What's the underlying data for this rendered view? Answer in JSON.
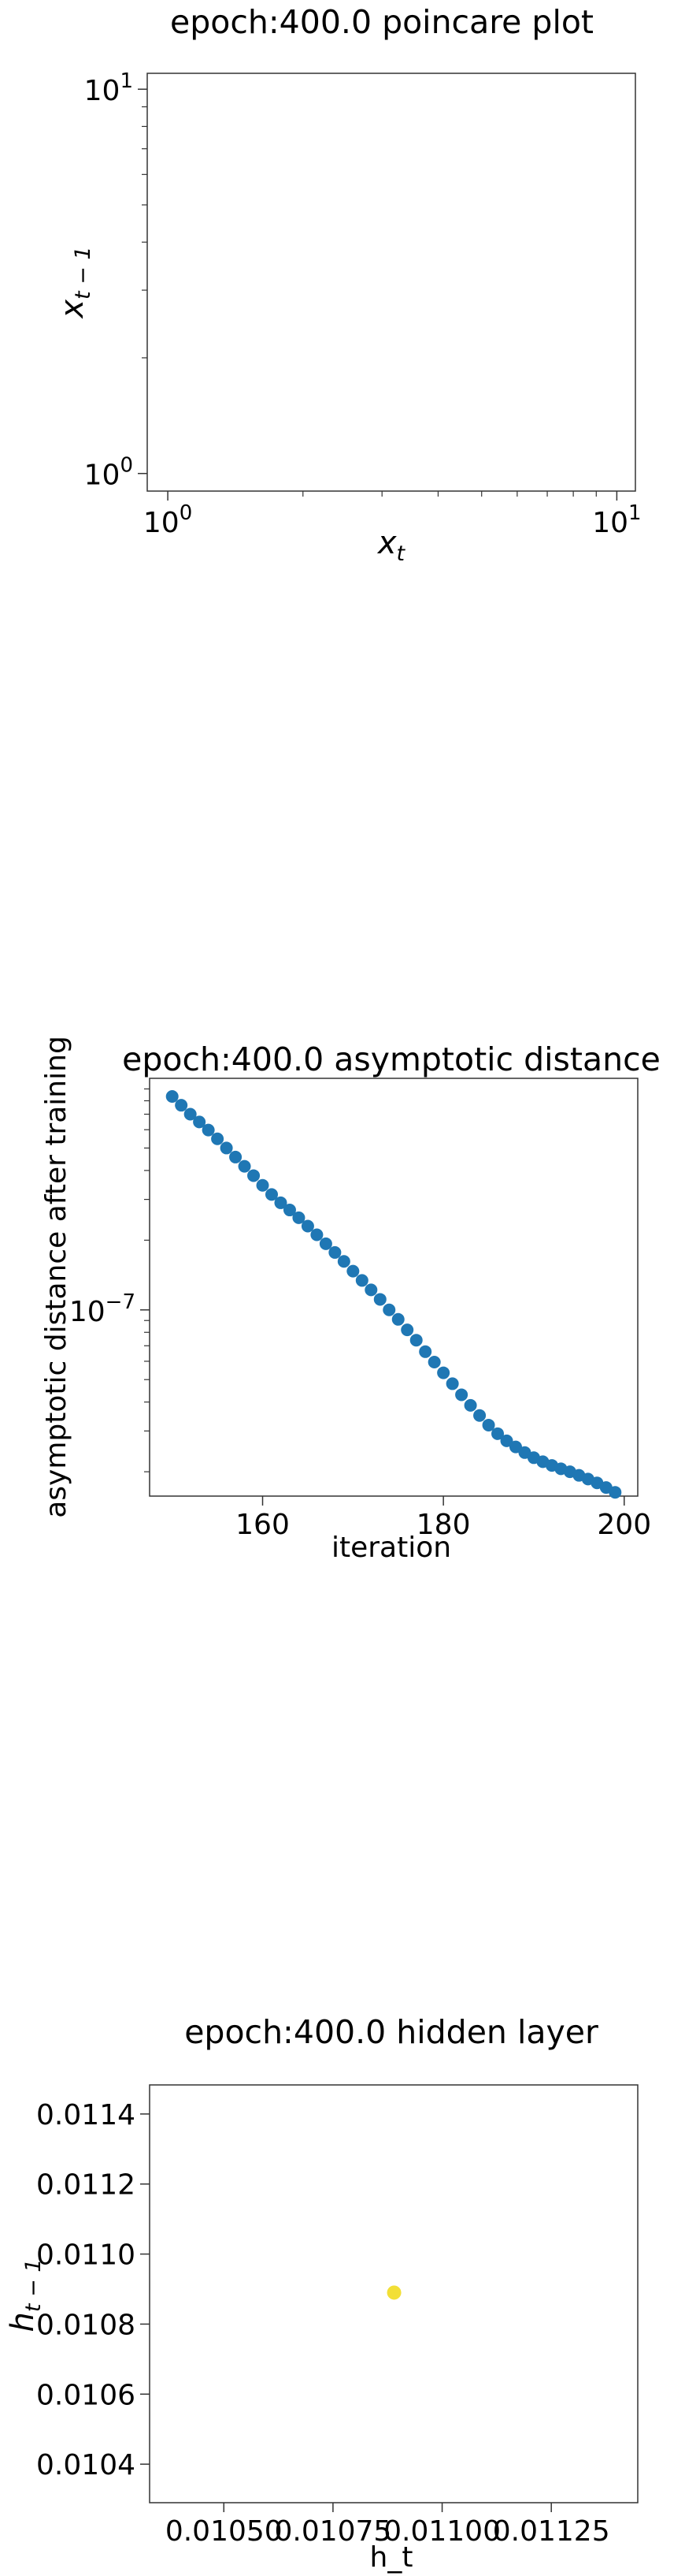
{
  "chart_data": [
    {
      "type": "scatter",
      "title": "epoch:400.0 poincare plot",
      "xlabel": "x",
      "xlabel_sub": "t",
      "ylabel": "x",
      "ylabel_sub": "t − 1",
      "xscale": "log",
      "yscale": "log",
      "xlim": [
        0.9,
        11
      ],
      "ylim": [
        0.9,
        11
      ],
      "x_ticks": [
        {
          "value": 1,
          "base": "10",
          "exp": "0"
        },
        {
          "value": 10,
          "base": "10",
          "exp": "1"
        }
      ],
      "y_ticks": [
        {
          "value": 1,
          "base": "10",
          "exp": "0"
        },
        {
          "value": 10,
          "base": "10",
          "exp": "1"
        }
      ],
      "points": [],
      "grid": false
    },
    {
      "type": "scatter",
      "title": "epoch:400.0 asymptotic distance",
      "xlabel": "iteration",
      "ylabel": "asymptotic distance after training",
      "xscale": "linear",
      "yscale": "log",
      "xlim": [
        147.5,
        201.5
      ],
      "ylim": [
        1.57e-08,
        1e-06
      ],
      "x_ticks": [
        {
          "value": 160,
          "label": "160"
        },
        {
          "value": 180,
          "label": "180"
        },
        {
          "value": 200,
          "label": "200"
        }
      ],
      "y_ticks": [
        {
          "value": 1e-07,
          "base": "10",
          "exp": "−7"
        }
      ],
      "color": "#1f77b4",
      "x": [
        150,
        151,
        152,
        153,
        154,
        155,
        156,
        157,
        158,
        159,
        160,
        161,
        162,
        163,
        164,
        165,
        166,
        167,
        168,
        169,
        170,
        171,
        172,
        173,
        174,
        175,
        176,
        177,
        178,
        179,
        180,
        181,
        182,
        183,
        184,
        185,
        186,
        187,
        188,
        189,
        190,
        191,
        192,
        193,
        194,
        195,
        196,
        197,
        198,
        199
      ],
      "y": [
        8.35e-07,
        7.65e-07,
        7e-07,
        6.48e-07,
        5.98e-07,
        5.48e-07,
        5e-07,
        4.57e-07,
        4.17e-07,
        3.8e-07,
        3.45e-07,
        3.15e-07,
        2.9e-07,
        2.7e-07,
        2.5e-07,
        2.3e-07,
        2.11e-07,
        1.93e-07,
        1.77e-07,
        1.62e-07,
        1.47e-07,
        1.34e-07,
        1.22e-07,
        1.11e-07,
        1e-07,
        9.1e-08,
        8.2e-08,
        7.4e-08,
        6.6e-08,
        5.95e-08,
        5.35e-08,
        4.8e-08,
        4.3e-08,
        3.87e-08,
        3.5e-08,
        3.18e-08,
        2.92e-08,
        2.72e-08,
        2.56e-08,
        2.42e-08,
        2.3e-08,
        2.21e-08,
        2.13e-08,
        2.06e-08,
        2e-08,
        1.93e-08,
        1.86e-08,
        1.79e-08,
        1.71e-08,
        1.63e-08
      ],
      "grid": false
    },
    {
      "type": "scatter",
      "title": "epoch:400.0 hidden layer",
      "xlabel": "h_t",
      "ylabel": "h",
      "ylabel_sub": "t − 1",
      "xscale": "linear",
      "yscale": "linear",
      "xlim": [
        0.01033,
        0.011448
      ],
      "ylim": [
        0.01029,
        0.011483
      ],
      "x_ticks": [
        {
          "value": 0.0105,
          "label": "0.01050"
        },
        {
          "value": 0.01075,
          "label": "0.01075"
        },
        {
          "value": 0.011,
          "label": "0.01100"
        },
        {
          "value": 0.01125,
          "label": "0.01125"
        }
      ],
      "y_ticks": [
        {
          "value": 0.0104,
          "label": "0.0104"
        },
        {
          "value": 0.0106,
          "label": "0.0106"
        },
        {
          "value": 0.0108,
          "label": "0.0108"
        },
        {
          "value": 0.011,
          "label": "0.0110"
        },
        {
          "value": 0.0112,
          "label": "0.0112"
        },
        {
          "value": 0.0114,
          "label": "0.0114"
        }
      ],
      "points": [
        {
          "x": 0.01089,
          "y": 0.01089
        }
      ],
      "color": "#f2df36",
      "grid": false
    }
  ]
}
